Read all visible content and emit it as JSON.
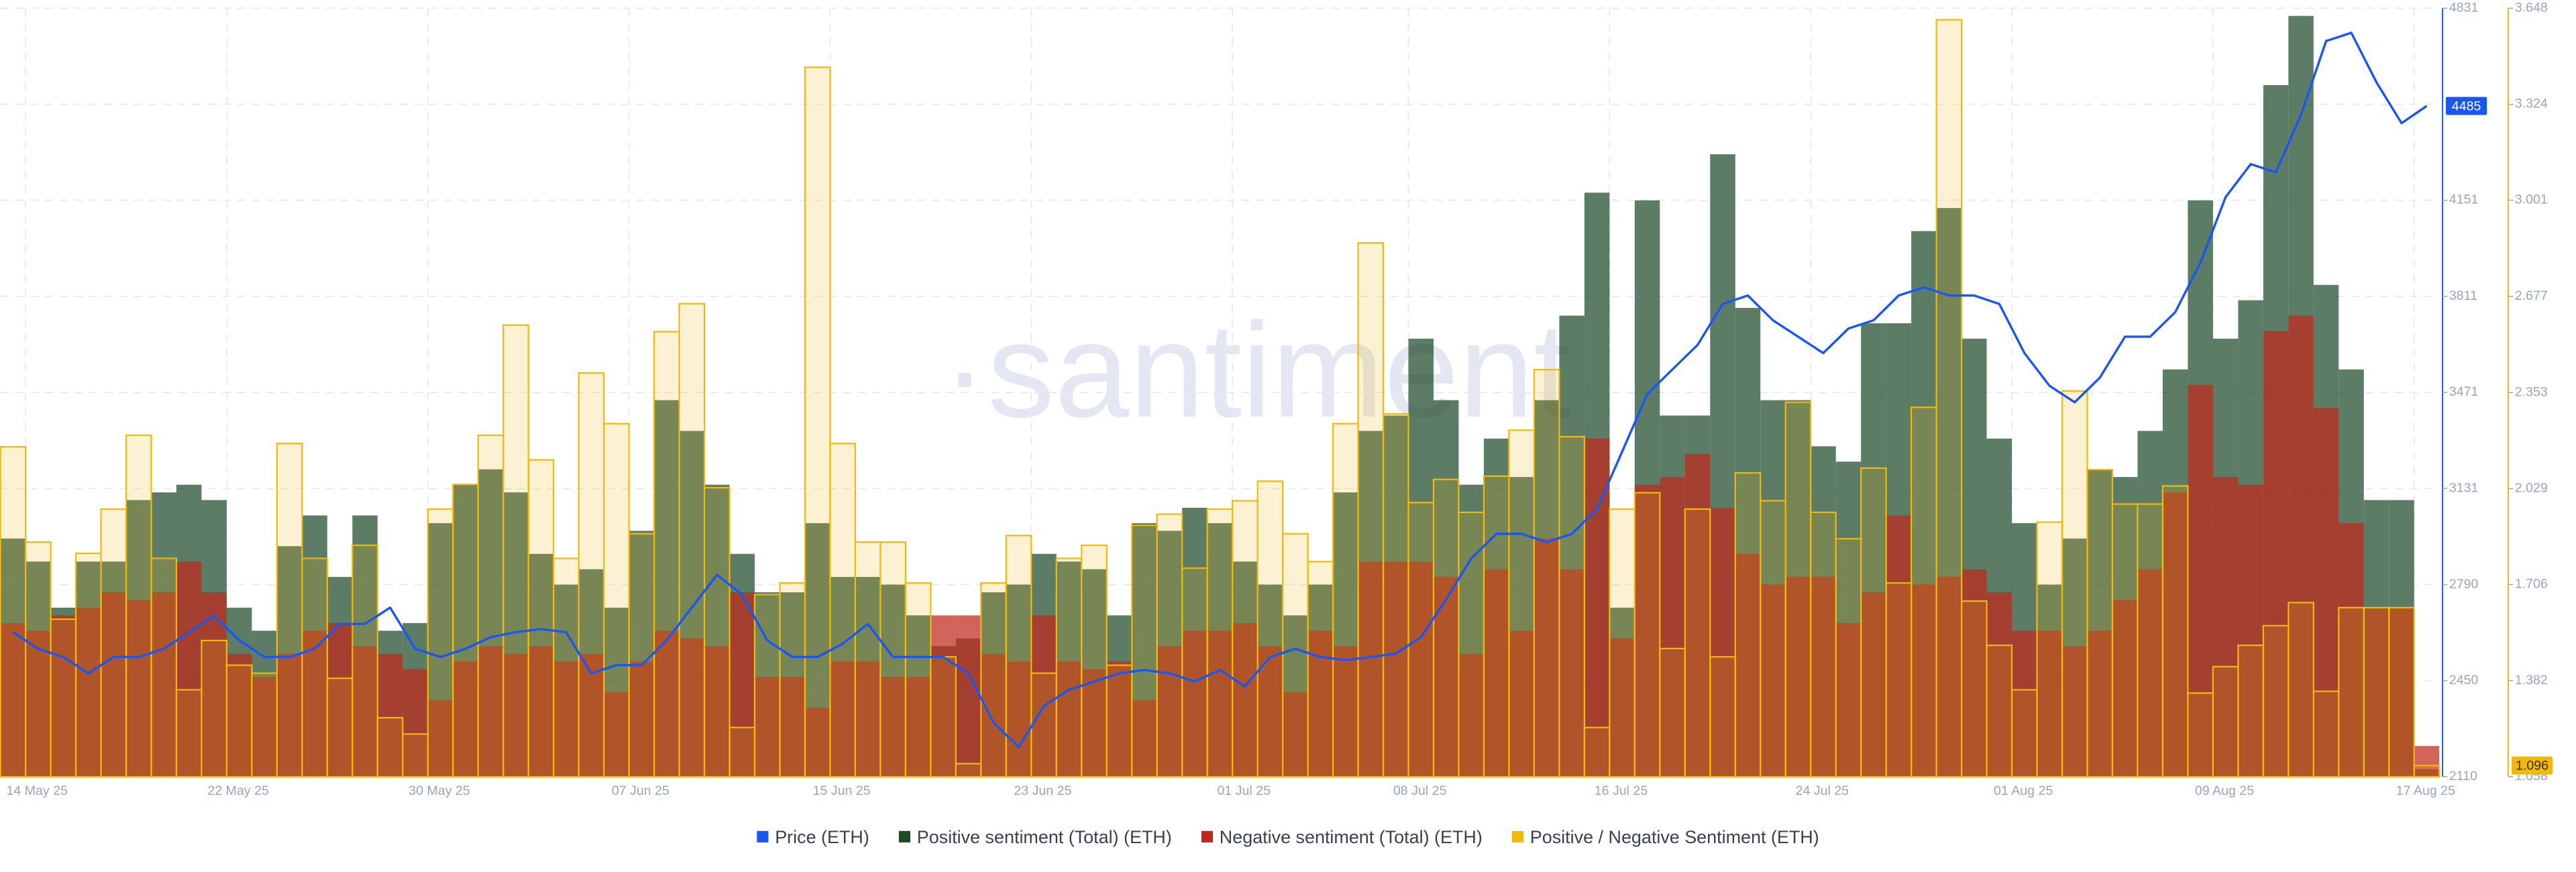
{
  "chart_data": {
    "type": "bar",
    "watermark": "·santiment",
    "x": [
      "2025-05-13",
      "2025-05-14",
      "2025-05-15",
      "2025-05-16",
      "2025-05-17",
      "2025-05-18",
      "2025-05-19",
      "2025-05-20",
      "2025-05-21",
      "2025-05-22",
      "2025-05-23",
      "2025-05-24",
      "2025-05-25",
      "2025-05-26",
      "2025-05-27",
      "2025-05-28",
      "2025-05-29",
      "2025-05-30",
      "2025-05-31",
      "2025-06-01",
      "2025-06-02",
      "2025-06-03",
      "2025-06-04",
      "2025-06-05",
      "2025-06-06",
      "2025-06-07",
      "2025-06-08",
      "2025-06-09",
      "2025-06-10",
      "2025-06-11",
      "2025-06-12",
      "2025-06-13",
      "2025-06-14",
      "2025-06-15",
      "2025-06-16",
      "2025-06-17",
      "2025-06-18",
      "2025-06-19",
      "2025-06-20",
      "2025-06-21",
      "2025-06-22",
      "2025-06-23",
      "2025-06-24",
      "2025-06-25",
      "2025-06-26",
      "2025-06-27",
      "2025-06-28",
      "2025-06-29",
      "2025-06-30",
      "2025-07-01",
      "2025-07-02",
      "2025-07-03",
      "2025-07-04",
      "2025-07-05",
      "2025-07-06",
      "2025-07-07",
      "2025-07-08",
      "2025-07-09",
      "2025-07-10",
      "2025-07-11",
      "2025-07-12",
      "2025-07-13",
      "2025-07-14",
      "2025-07-15",
      "2025-07-16",
      "2025-07-17",
      "2025-07-18",
      "2025-07-19",
      "2025-07-20",
      "2025-07-21",
      "2025-07-22",
      "2025-07-23",
      "2025-07-24",
      "2025-07-25",
      "2025-07-26",
      "2025-07-27",
      "2025-07-28",
      "2025-07-29",
      "2025-07-30",
      "2025-07-31",
      "2025-08-01",
      "2025-08-02",
      "2025-08-03",
      "2025-08-04",
      "2025-08-05",
      "2025-08-06",
      "2025-08-07",
      "2025-08-08",
      "2025-08-09",
      "2025-08-10",
      "2025-08-11",
      "2025-08-12",
      "2025-08-13",
      "2025-08-14",
      "2025-08-15",
      "2025-08-16",
      "2025-08-17"
    ],
    "xlim": [
      "2025-05-13",
      "2025-08-18"
    ],
    "xticks": [
      {
        "value": "2025-05-14",
        "label": "14 May 25"
      },
      {
        "value": "2025-05-22",
        "label": "22 May 25"
      },
      {
        "value": "2025-05-30",
        "label": "30 May 25"
      },
      {
        "value": "2025-06-07",
        "label": "07 Jun 25"
      },
      {
        "value": "2025-06-15",
        "label": "15 Jun 25"
      },
      {
        "value": "2025-06-23",
        "label": "23 Jun 25"
      },
      {
        "value": "2025-07-01",
        "label": "01 Jul 25"
      },
      {
        "value": "2025-07-08",
        "label": "08 Jul 25"
      },
      {
        "value": "2025-07-16",
        "label": "16 Jul 25"
      },
      {
        "value": "2025-07-24",
        "label": "24 Jul 25"
      },
      {
        "value": "2025-08-01",
        "label": "01 Aug 25"
      },
      {
        "value": "2025-08-09",
        "label": "09 Aug 25"
      },
      {
        "value": "2025-08-17",
        "label": "17 Aug 25"
      }
    ],
    "ylim": [
      2110,
      4831
    ],
    "yticks": [
      2110,
      2450,
      2790,
      3131,
      3471,
      3811,
      4151,
      4831
    ],
    "y2lim": [
      1.058,
      3.648
    ],
    "y2ticks": [
      1.058,
      1.382,
      1.706,
      2.029,
      2.353,
      2.677,
      3.001,
      3.324,
      3.648
    ],
    "y3lim": [
      0,
      100
    ],
    "grid": true,
    "legend": "bottom",
    "series": [
      {
        "name": "Price (ETH)",
        "type": "line",
        "axis": "y",
        "color": "#1a56f0",
        "values": [
          2622,
          2563,
          2534,
          2476,
          2534,
          2534,
          2563,
          2622,
          2680,
          2593,
          2534,
          2534,
          2563,
          2651,
          2651,
          2709,
          2563,
          2534,
          2563,
          2604,
          2622,
          2633,
          2622,
          2476,
          2505,
          2505,
          2593,
          2709,
          2825,
          2755,
          2593,
          2534,
          2534,
          2581,
          2651,
          2534,
          2534,
          2534,
          2476,
          2302,
          2215,
          2360,
          2418,
          2447,
          2476,
          2488,
          2476,
          2447,
          2488,
          2430,
          2534,
          2563,
          2534,
          2523,
          2534,
          2546,
          2604,
          2738,
          2883,
          2970,
          2970,
          2941,
          2970,
          3058,
          3261,
          3465,
          3552,
          3639,
          3784,
          3814,
          3726,
          3668,
          3610,
          3697,
          3726,
          3814,
          3843,
          3814,
          3814,
          3784,
          3610,
          3494,
          3436,
          3523,
          3668,
          3668,
          3755,
          3930,
          4162,
          4279,
          4250,
          4453,
          4715,
          4744,
          4569,
          4424,
          4485
        ]
      },
      {
        "name": "Positive sentiment (Total) (ETH)",
        "type": "bar",
        "axis": "y3",
        "color": "#1f4a2a",
        "values": [
          31,
          28,
          22,
          28,
          28,
          36,
          37,
          38,
          36,
          22,
          19,
          30,
          34,
          26,
          34,
          19,
          20,
          33,
          38,
          40,
          37,
          29,
          25,
          27,
          22,
          32,
          49,
          45,
          38,
          29,
          24,
          24,
          33,
          26,
          26,
          25,
          21,
          17,
          18,
          24,
          25,
          29,
          28,
          27,
          21,
          33,
          32,
          35,
          33,
          28,
          25,
          21,
          25,
          37,
          45,
          47,
          57,
          49,
          38,
          44,
          39,
          49,
          60,
          76,
          22,
          75,
          47,
          47,
          81,
          61,
          49,
          49,
          43,
          41,
          59,
          59,
          71,
          74,
          57,
          44,
          33,
          25,
          31,
          40,
          39,
          45,
          53,
          75,
          57,
          62,
          90,
          99,
          64,
          53,
          36,
          36,
          1
        ]
      },
      {
        "name": "Negative sentiment (Total) (ETH)",
        "type": "bar",
        "axis": "y3",
        "color": "#c0281c",
        "values": [
          20,
          19,
          21,
          22,
          24,
          23,
          24,
          28,
          24,
          16,
          13,
          16,
          19,
          20,
          17,
          16,
          14,
          10,
          15,
          17,
          16,
          17,
          15,
          16,
          11,
          15,
          19,
          18,
          17,
          24,
          13,
          13,
          9,
          15,
          15,
          13,
          13,
          21,
          21,
          16,
          15,
          21,
          15,
          14,
          15,
          10,
          17,
          19,
          19,
          20,
          17,
          11,
          19,
          17,
          28,
          28,
          28,
          26,
          16,
          27,
          19,
          31,
          27,
          44,
          18,
          38,
          39,
          42,
          35,
          29,
          25,
          26,
          26,
          20,
          24,
          34,
          25,
          26,
          27,
          24,
          19,
          19,
          17,
          19,
          23,
          27,
          37,
          51,
          39,
          38,
          58,
          60,
          48,
          33,
          22,
          22,
          4
        ]
      },
      {
        "name": "Positive / Negative Sentiment (ETH)",
        "type": "bar",
        "axis": "y2",
        "color": "#f0b90b",
        "values": [
          2.17,
          1.849,
          1.589,
          1.811,
          1.96,
          2.209,
          1.794,
          1.351,
          1.517,
          1.434,
          1.407,
          2.181,
          1.794,
          1.39,
          1.838,
          1.257,
          1.202,
          1.96,
          2.043,
          2.209,
          2.58,
          2.126,
          1.794,
          2.419,
          2.248,
          1.877,
          2.558,
          2.652,
          2.032,
          1.224,
          1.672,
          1.711,
          3.449,
          2.181,
          1.849,
          1.849,
          1.711,
          1.462,
          1.102,
          1.711,
          1.871,
          1.407,
          1.794,
          1.838,
          1.434,
          1.905,
          1.943,
          1.761,
          1.96,
          1.988,
          2.054,
          1.877,
          1.783,
          2.248,
          2.857,
          2.281,
          1.982,
          2.06,
          1.949,
          2.071,
          2.226,
          2.43,
          2.204,
          1.224,
          1.96,
          2.015,
          1.49,
          1.96,
          1.462,
          2.082,
          1.988,
          2.32,
          1.949,
          1.86,
          2.098,
          1.711,
          2.303,
          3.609,
          1.65,
          1.501,
          1.351,
          1.916,
          2.358,
          2.093,
          1.977,
          1.977,
          2.038,
          1.34,
          1.429,
          1.501,
          1.567,
          1.645,
          1.346,
          1.628,
          1.628,
          1.628,
          1.096
        ]
      }
    ]
  }
}
